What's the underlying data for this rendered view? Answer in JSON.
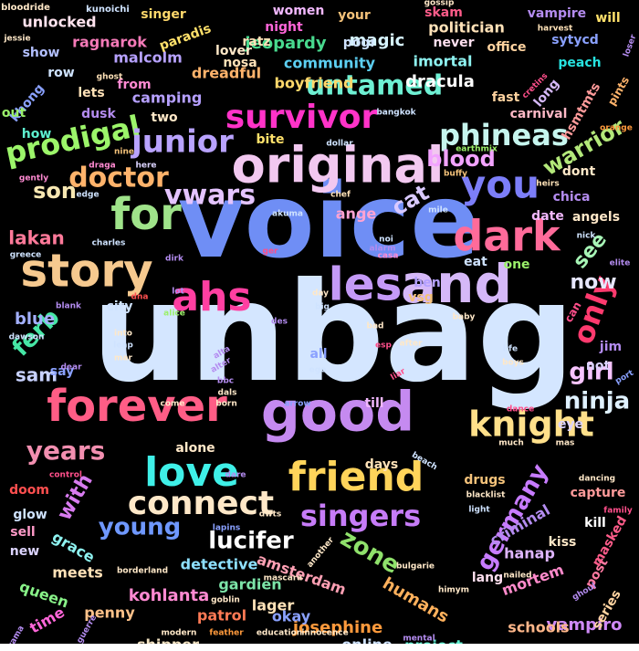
{
  "background": "#000000",
  "palette": [
    "#cfe3ff",
    "#8aa1ff",
    "#b48cf0",
    "#ff4f8b",
    "#f4c27a",
    "#9bf06a",
    "#26e3e0",
    "#ff66d9",
    "#e0b8f5"
  ],
  "words": [
    {
      "text": "unbag",
      "color": "#d4e6ff"
    },
    {
      "text": "voice",
      "color": "#6f8ef5"
    },
    {
      "text": "good",
      "color": "#c58af0"
    },
    {
      "text": "original",
      "color": "#f2c8f0"
    },
    {
      "text": "story",
      "color": "#f6c98f"
    },
    {
      "text": "forever",
      "color": "#ff5d86"
    },
    {
      "text": "and",
      "color": "#d5b8f8"
    },
    {
      "text": "for",
      "color": "#9fe38a"
    },
    {
      "text": "friend",
      "color": "#ffd45a"
    },
    {
      "text": "dark",
      "color": "#ff6b9a"
    },
    {
      "text": "love",
      "color": "#3ff0e8"
    },
    {
      "text": "les",
      "color": "#c49af7"
    },
    {
      "text": "you",
      "color": "#7c7ef9"
    },
    {
      "text": "ahs",
      "color": "#ff3fa1"
    },
    {
      "text": "survivor",
      "color": "#ff33c8"
    },
    {
      "text": "connect",
      "color": "#ffe8c8"
    },
    {
      "text": "knight",
      "color": "#ffe08a"
    },
    {
      "text": "singers",
      "color": "#c67cf7"
    },
    {
      "text": "untamed",
      "color": "#6ef0d3"
    },
    {
      "text": "prodigal",
      "color": "#9cf56a"
    },
    {
      "text": "phineas",
      "color": "#c6f5ee"
    },
    {
      "text": "junior",
      "color": "#b9a3ff"
    },
    {
      "text": "vwars",
      "color": "#e4c4ff"
    },
    {
      "text": "doctor",
      "color": "#ffb36b"
    },
    {
      "text": "only",
      "color": "#ff3a6e"
    },
    {
      "text": "years",
      "color": "#f28fb0"
    },
    {
      "text": "germany",
      "color": "#c77cff"
    },
    {
      "text": "ninja",
      "color": "#dff1ff"
    },
    {
      "text": "girl",
      "color": "#f7c4ff"
    },
    {
      "text": "lucifer",
      "color": "#ffffff"
    },
    {
      "text": "young",
      "color": "#6f98ff"
    },
    {
      "text": "zone",
      "color": "#8fe16b"
    },
    {
      "text": "ferb",
      "color": "#46e6a5"
    },
    {
      "text": "blood",
      "color": "#f2a3ff"
    },
    {
      "text": "warrior",
      "color": "#b3e87a"
    },
    {
      "text": "son",
      "color": "#f7e7b2"
    },
    {
      "text": "cat",
      "color": "#d9c9ff"
    },
    {
      "text": "see",
      "color": "#a7f5b6"
    },
    {
      "text": "now",
      "color": "#e7e7ff"
    },
    {
      "text": "with",
      "color": "#d87bf0"
    },
    {
      "text": "sam",
      "color": "#c8d2ff"
    },
    {
      "text": "blue",
      "color": "#a3b0ff"
    },
    {
      "text": "lakan",
      "color": "#ff7a9a"
    },
    {
      "text": "ange",
      "color": "#ffa3d2"
    },
    {
      "text": "josephine",
      "color": "#ff9a3c"
    },
    {
      "text": "kohlanta",
      "color": "#ff8ad2"
    },
    {
      "text": "humans",
      "color": "#ffb15c"
    },
    {
      "text": "vampiro",
      "color": "#cf8af7"
    },
    {
      "text": "magic",
      "color": "#d6f4ff"
    },
    {
      "text": "jeopardy",
      "color": "#48d98e"
    },
    {
      "text": "dracula",
      "color": "#ffffff"
    },
    {
      "text": "politician",
      "color": "#ffe2b8"
    },
    {
      "text": "community",
      "color": "#5ccff2"
    },
    {
      "text": "imortal",
      "color": "#8ef2f0"
    },
    {
      "text": "boyfriend",
      "color": "#ffd86b"
    },
    {
      "text": "unlocked",
      "color": "#ffe3ee"
    },
    {
      "text": "ragnarok",
      "color": "#f57ab8"
    },
    {
      "text": "malcolm",
      "color": "#b7a2ff"
    },
    {
      "text": "dreadful",
      "color": "#ffb36b"
    },
    {
      "text": "camping",
      "color": "#b6a0ff"
    },
    {
      "text": "carnival",
      "color": "#ffb8c6"
    },
    {
      "text": "detective",
      "color": "#8ee0ff"
    },
    {
      "text": "amsterdam",
      "color": "#ffa0b4"
    },
    {
      "text": "gardien",
      "color": "#7ce4a8"
    },
    {
      "text": "patrol",
      "color": "#ff7a55"
    },
    {
      "text": "shipper",
      "color": "#f2e2c2"
    },
    {
      "text": "meets",
      "color": "#ffe2b8"
    },
    {
      "text": "grace",
      "color": "#8ef2f0"
    },
    {
      "text": "queen",
      "color": "#88f288"
    },
    {
      "text": "penny",
      "color": "#ffc28a"
    },
    {
      "text": "criminal",
      "color": "#b48cf0"
    },
    {
      "text": "hanap",
      "color": "#dfb6ff"
    },
    {
      "text": "mortem",
      "color": "#ff8acb"
    },
    {
      "text": "schools",
      "color": "#ffb78a"
    },
    {
      "text": "project",
      "color": "#5ef0d0"
    },
    {
      "text": "online",
      "color": "#cfe3ff"
    },
    {
      "text": "okay",
      "color": "#8aa1ff"
    },
    {
      "text": "this",
      "color": "#ffe16b"
    },
    {
      "text": "why",
      "color": "#a2ffd0"
    },
    {
      "text": "time",
      "color": "#ff66d9"
    },
    {
      "text": "lager",
      "color": "#ffe2b8"
    },
    {
      "text": "drugs",
      "color": "#f4c27a"
    },
    {
      "text": "lang",
      "color": "#ffe0f0"
    },
    {
      "text": "post",
      "color": "#ff7aa2"
    },
    {
      "text": "masked",
      "color": "#ff5c8a"
    },
    {
      "text": "series",
      "color": "#ffd3a0"
    },
    {
      "text": "capture",
      "color": "#ff9a9a"
    },
    {
      "text": "kill",
      "color": "#ffffff"
    },
    {
      "text": "kiss",
      "color": "#ffe8c8"
    },
    {
      "text": "angels",
      "color": "#ffe8c8"
    },
    {
      "text": "chica",
      "color": "#b48cf0"
    },
    {
      "text": "date",
      "color": "#f2b8ff"
    },
    {
      "text": "eat",
      "color": "#cfe3ff"
    },
    {
      "text": "one",
      "color": "#9bf06a"
    },
    {
      "text": "ben",
      "color": "#b3a0ff"
    },
    {
      "text": "vsg",
      "color": "#f4c27a"
    },
    {
      "text": "till",
      "color": "#f2b8ff"
    },
    {
      "text": "days",
      "color": "#ffe2b8"
    },
    {
      "text": "alone",
      "color": "#ffe8c8"
    },
    {
      "text": "doom",
      "color": "#ff4f4f"
    },
    {
      "text": "glow",
      "color": "#cfe3ff"
    },
    {
      "text": "sell",
      "color": "#ff9ac8"
    },
    {
      "text": "new",
      "color": "#dcd4ff"
    },
    {
      "text": "singer",
      "color": "#ffd86b"
    },
    {
      "text": "paradis",
      "color": "#ffe16b"
    },
    {
      "text": "women",
      "color": "#f2b8ff"
    },
    {
      "text": "ratz",
      "color": "#ffe2b8"
    },
    {
      "text": "your",
      "color": "#f4c27a"
    },
    {
      "text": "pogi",
      "color": "#cfe3ff"
    },
    {
      "text": "skam",
      "color": "#ff5c8a"
    },
    {
      "text": "vampire",
      "color": "#b48cf0"
    },
    {
      "text": "will",
      "color": "#ffe16b"
    },
    {
      "text": "sytycd",
      "color": "#8aa1ff"
    },
    {
      "text": "peach",
      "color": "#26e3e0"
    },
    {
      "text": "office",
      "color": "#ffd3a0"
    },
    {
      "text": "never",
      "color": "#ffe0f0"
    },
    {
      "text": "night",
      "color": "#ff66d9"
    },
    {
      "text": "nosa",
      "color": "#ffe2b8"
    },
    {
      "text": "lover",
      "color": "#ffe8c8"
    },
    {
      "text": "show",
      "color": "#b3c0ff"
    },
    {
      "text": "row",
      "color": "#cfe3ff"
    },
    {
      "text": "lets",
      "color": "#ffe2b8"
    },
    {
      "text": "from",
      "color": "#ff8ad2"
    },
    {
      "text": "khong",
      "color": "#8aa1ff"
    },
    {
      "text": "dusk",
      "color": "#b48cf0"
    },
    {
      "text": "out",
      "color": "#9bf06a"
    },
    {
      "text": "how",
      "color": "#5ef0d0"
    },
    {
      "text": "two",
      "color": "#ffe8c8"
    },
    {
      "text": "bite",
      "color": "#ffe16b"
    },
    {
      "text": "fast",
      "color": "#ffd3a0"
    },
    {
      "text": "long",
      "color": "#d5b8f8"
    },
    {
      "text": "hsmtmts",
      "color": "#ff9a9a"
    },
    {
      "text": "pints",
      "color": "#ffb36b"
    },
    {
      "text": "dont",
      "color": "#ffe8c8"
    },
    {
      "text": "not",
      "color": "#dcd4ff"
    },
    {
      "text": "say",
      "color": "#8aa1ff"
    },
    {
      "text": "eye",
      "color": "#dcd4ff"
    },
    {
      "text": "jim",
      "color": "#b48cf0"
    },
    {
      "text": "can",
      "color": "#ff4f8b"
    },
    {
      "text": "city",
      "color": "#cfe3ff"
    },
    {
      "text": "all",
      "color": "#8aa1ff"
    },
    {
      "text": "kunoichi",
      "color": "#cfe3ff"
    },
    {
      "text": "bloodride",
      "color": "#ffe8c8"
    },
    {
      "text": "jessie",
      "color": "#ffe8c8"
    },
    {
      "text": "ghost",
      "color": "#ffe2b8"
    },
    {
      "text": "harvest",
      "color": "#ffe2b8"
    },
    {
      "text": "gossip",
      "color": "#ffe8c8"
    },
    {
      "text": "loser",
      "color": "#b48cf0"
    },
    {
      "text": "bangkok",
      "color": "#cfe3ff"
    },
    {
      "text": "earthmix",
      "color": "#9bf06a"
    },
    {
      "text": "dollar",
      "color": "#cfe3ff"
    },
    {
      "text": "nine",
      "color": "#f4c27a"
    },
    {
      "text": "here",
      "color": "#dcd4ff"
    },
    {
      "text": "draga",
      "color": "#ff8ad2"
    },
    {
      "text": "gently",
      "color": "#ff8ad2"
    },
    {
      "text": "edge",
      "color": "#cfe3ff"
    },
    {
      "text": "buffy",
      "color": "#f4c27a"
    },
    {
      "text": "chef",
      "color": "#ffe2b8"
    },
    {
      "text": "mile",
      "color": "#cfe3ff"
    },
    {
      "text": "akuma",
      "color": "#cfe3ff"
    },
    {
      "text": "heirs",
      "color": "#ffe2b8"
    },
    {
      "text": "orange",
      "color": "#ff9a3c"
    },
    {
      "text": "cretins",
      "color": "#ff4f8b"
    },
    {
      "text": "charles",
      "color": "#cfe3ff"
    },
    {
      "text": "greece",
      "color": "#cfe3ff"
    },
    {
      "text": "dirk",
      "color": "#b48cf0"
    },
    {
      "text": "ger",
      "color": "#ff4f8b"
    },
    {
      "text": "alarm",
      "color": "#b48cf0"
    },
    {
      "text": "noi",
      "color": "#cfe3ff"
    },
    {
      "text": "casa",
      "color": "#ff8ad2"
    },
    {
      "text": "nick",
      "color": "#cfe3ff"
    },
    {
      "text": "elite",
      "color": "#b48cf0"
    },
    {
      "text": "lot",
      "color": "#b48cf0"
    },
    {
      "text": "blank",
      "color": "#b48cf0"
    },
    {
      "text": "dna",
      "color": "#ff4f4f"
    },
    {
      "text": "alice",
      "color": "#9bf06a"
    },
    {
      "text": "day",
      "color": "#ffe8c8"
    },
    {
      "text": "big",
      "color": "#cfe3ff"
    },
    {
      "text": "dawson",
      "color": "#cfe3ff"
    },
    {
      "text": "des",
      "color": "#b48cf0"
    },
    {
      "text": "bad",
      "color": "#ffe8c8"
    },
    {
      "text": "baby",
      "color": "#ffe8c8"
    },
    {
      "text": "into",
      "color": "#ffe8c8"
    },
    {
      "text": "leap",
      "color": "#cfe3ff"
    },
    {
      "text": "mar",
      "color": "#ffe8c8"
    },
    {
      "text": "alta",
      "color": "#b48cf0"
    },
    {
      "text": "alter",
      "color": "#b48cf0"
    },
    {
      "text": "after",
      "color": "#ffe8c8"
    },
    {
      "text": "esp",
      "color": "#ff4f8b"
    },
    {
      "text": "ego",
      "color": "#cfe3ff"
    },
    {
      "text": "life",
      "color": "#cfe3ff"
    },
    {
      "text": "boys",
      "color": "#ffe8c8"
    },
    {
      "text": "dear",
      "color": "#b48cf0"
    },
    {
      "text": "bbc",
      "color": "#b48cf0"
    },
    {
      "text": "dals",
      "color": "#ffe8c8"
    },
    {
      "text": "liar",
      "color": "#ff4f8b"
    },
    {
      "text": "port",
      "color": "#8aa1ff"
    },
    {
      "text": "arrow",
      "color": "#8aa1ff"
    },
    {
      "text": "come",
      "color": "#ffe8c8"
    },
    {
      "text": "born",
      "color": "#ffe8c8"
    },
    {
      "text": "dance",
      "color": "#ff4f8b"
    },
    {
      "text": "much",
      "color": "#ffe8c8"
    },
    {
      "text": "mas",
      "color": "#ffe8c8"
    },
    {
      "text": "beach",
      "color": "#cfe3ff"
    },
    {
      "text": "control",
      "color": "#ff4f8b"
    },
    {
      "text": "dare",
      "color": "#b48cf0"
    },
    {
      "text": "dancing",
      "color": "#ffe8c8"
    },
    {
      "text": "family",
      "color": "#ff4f8b"
    },
    {
      "text": "light",
      "color": "#cfe3ff"
    },
    {
      "text": "blacklist",
      "color": "#ffe8c8"
    },
    {
      "text": "dwts",
      "color": "#ffe8c8"
    },
    {
      "text": "lapins",
      "color": "#8aa1ff"
    },
    {
      "text": "nailed",
      "color": "#ffe8c8"
    },
    {
      "text": "bulgarie",
      "color": "#ffe8c8"
    },
    {
      "text": "borderland",
      "color": "#ffe8c8"
    },
    {
      "text": "mascara",
      "color": "#ffe8c8"
    },
    {
      "text": "another",
      "color": "#ffe8c8"
    },
    {
      "text": "ghoul",
      "color": "#b48cf0"
    },
    {
      "text": "himym",
      "color": "#ffe8c8"
    },
    {
      "text": "goblin",
      "color": "#ffe8c8"
    },
    {
      "text": "guerre",
      "color": "#b48cf0"
    },
    {
      "text": "drama",
      "color": "#b48cf0"
    },
    {
      "text": "mental",
      "color": "#b48cf0"
    },
    {
      "text": "modern",
      "color": "#ffe8c8"
    },
    {
      "text": "feather",
      "color": "#ff9a3c"
    },
    {
      "text": "education",
      "color": "#ffe8c8"
    },
    {
      "text": "innocence",
      "color": "#ffe8c8"
    }
  ]
}
